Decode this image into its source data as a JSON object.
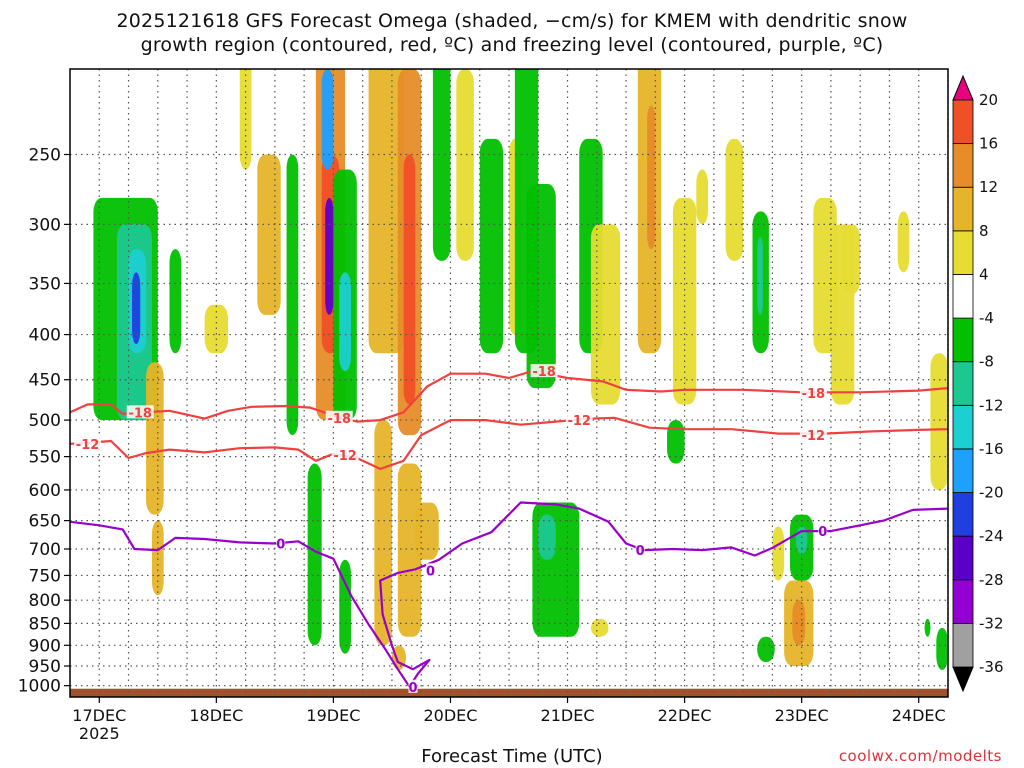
{
  "title_line1": "2025121618 GFS Forecast Omega (shaded, −cm/s) for KMEM with dendritic snow",
  "title_line2": "growth region (contoured, red, ºC) and freezing level (contoured, purple, ºC)",
  "xlabel": "Forecast Time (UTC)",
  "credit": "coolwx.com/modelts",
  "colors": {
    "snow_growth_contour": "#f04040",
    "freezing_level_contour": "#9900cc",
    "terrain": "#a0522d",
    "grid": "#555555"
  },
  "chart_data": {
    "type": "heatmap",
    "x_ticks": [
      "17DEC",
      "18DEC",
      "19DEC",
      "20DEC",
      "21DEC",
      "22DEC",
      "23DEC",
      "24DEC"
    ],
    "x_sub_label": "2025",
    "y_ticks": [
      250,
      300,
      350,
      400,
      450,
      500,
      550,
      600,
      650,
      700,
      750,
      800,
      850,
      900,
      950,
      1000
    ],
    "y_unit": "hPa",
    "colorbar": {
      "tick_labels": [
        "-36",
        "-32",
        "-28",
        "-24",
        "-20",
        "-16",
        "-12",
        "-8",
        "-4",
        "4",
        "8",
        "12",
        "16",
        "20"
      ],
      "boundaries": [
        -36,
        -32,
        -28,
        -24,
        -20,
        -16,
        -12,
        -8,
        -4,
        4,
        8,
        12,
        16,
        20
      ],
      "colors": [
        "#000000",
        "#a0a0a0",
        "#9400d3",
        "#5a00c8",
        "#1f3fe0",
        "#1ea0ff",
        "#1ccfd0",
        "#1cc890",
        "#00c000",
        "#ffffff",
        "#e6dc32",
        "#e6b428",
        "#e68c28",
        "#f05028",
        "#e6007f"
      ]
    },
    "contours": [
      {
        "label": "-18",
        "color": "red",
        "points": [
          [
            16.75,
            490
          ],
          [
            16.9,
            480
          ],
          [
            17.1,
            480
          ],
          [
            17.2,
            492
          ],
          [
            17.4,
            490
          ],
          [
            17.6,
            488
          ],
          [
            17.9,
            498
          ],
          [
            18.1,
            488
          ],
          [
            18.3,
            483
          ],
          [
            18.6,
            482
          ],
          [
            18.8,
            484
          ],
          [
            19.0,
            494
          ],
          [
            19.2,
            502
          ],
          [
            19.4,
            500
          ],
          [
            19.6,
            490
          ],
          [
            19.8,
            458
          ],
          [
            20.0,
            443
          ],
          [
            20.3,
            443
          ],
          [
            20.5,
            448
          ],
          [
            20.7,
            440
          ],
          [
            21.0,
            448
          ],
          [
            21.3,
            452
          ],
          [
            21.5,
            462
          ],
          [
            21.8,
            464
          ],
          [
            22.0,
            462
          ],
          [
            22.5,
            462
          ],
          [
            23.0,
            465
          ],
          [
            23.5,
            465
          ],
          [
            24.0,
            463
          ],
          [
            24.25,
            460
          ]
        ],
        "label_at": [
          [
            17.35,
            490
          ],
          [
            19.05,
            497
          ],
          [
            20.8,
            440
          ],
          [
            23.1,
            466
          ]
        ]
      },
      {
        "label": "-12",
        "color": "red",
        "points": [
          [
            16.75,
            532
          ],
          [
            16.95,
            530
          ],
          [
            17.1,
            528
          ],
          [
            17.25,
            552
          ],
          [
            17.4,
            545
          ],
          [
            17.6,
            540
          ],
          [
            17.9,
            544
          ],
          [
            18.2,
            538
          ],
          [
            18.5,
            537
          ],
          [
            18.7,
            540
          ],
          [
            18.85,
            556
          ],
          [
            19.0,
            546
          ],
          [
            19.2,
            552
          ],
          [
            19.4,
            568
          ],
          [
            19.6,
            556
          ],
          [
            19.75,
            520
          ],
          [
            20.0,
            500
          ],
          [
            20.3,
            500
          ],
          [
            20.6,
            506
          ],
          [
            20.9,
            502
          ],
          [
            21.2,
            498
          ],
          [
            21.4,
            497
          ],
          [
            21.7,
            510
          ],
          [
            22.0,
            512
          ],
          [
            22.4,
            512
          ],
          [
            22.8,
            518
          ],
          [
            23.2,
            518
          ],
          [
            23.6,
            515
          ],
          [
            24.0,
            513
          ],
          [
            24.25,
            512
          ]
        ],
        "label_at": [
          [
            16.9,
            532
          ],
          [
            19.1,
            548
          ],
          [
            21.1,
            500
          ],
          [
            23.1,
            520
          ]
        ]
      },
      {
        "label": "0",
        "color": "purple",
        "points": [
          [
            16.75,
            652
          ],
          [
            17.0,
            658
          ],
          [
            17.2,
            665
          ],
          [
            17.3,
            700
          ],
          [
            17.5,
            702
          ],
          [
            17.65,
            680
          ],
          [
            17.9,
            682
          ],
          [
            18.2,
            688
          ],
          [
            18.5,
            690
          ],
          [
            18.7,
            686
          ],
          [
            18.85,
            705
          ],
          [
            19.0,
            718
          ],
          [
            19.15,
            790
          ],
          [
            19.3,
            852
          ],
          [
            19.45,
            912
          ],
          [
            19.55,
            958
          ],
          [
            19.65,
            1003
          ],
          [
            19.72,
            970
          ],
          [
            19.82,
            935
          ],
          [
            19.68,
            958
          ],
          [
            19.55,
            940
          ],
          [
            19.5,
            900
          ],
          [
            19.42,
            830
          ],
          [
            19.4,
            760
          ],
          [
            19.55,
            745
          ],
          [
            19.7,
            738
          ],
          [
            19.9,
            720
          ],
          [
            20.1,
            690
          ],
          [
            20.35,
            670
          ],
          [
            20.6,
            620
          ],
          [
            20.9,
            623
          ],
          [
            21.1,
            630
          ],
          [
            21.35,
            652
          ],
          [
            21.5,
            690
          ],
          [
            21.65,
            702
          ],
          [
            21.9,
            700
          ],
          [
            22.15,
            702
          ],
          [
            22.4,
            697
          ],
          [
            22.6,
            712
          ],
          [
            22.75,
            698
          ],
          [
            23.0,
            668
          ],
          [
            23.25,
            668
          ],
          [
            23.5,
            658
          ],
          [
            23.7,
            650
          ],
          [
            23.95,
            632
          ],
          [
            24.25,
            630
          ]
        ],
        "label_at": [
          [
            18.55,
            690
          ],
          [
            19.83,
            740
          ],
          [
            19.68,
            1003
          ],
          [
            21.62,
            702
          ],
          [
            23.18,
            668
          ]
        ]
      }
    ],
    "omega_cells": [
      [
        16.95,
        17.5,
        280,
        500,
        -8
      ],
      [
        17.15,
        17.45,
        300,
        500,
        -12
      ],
      [
        17.25,
        17.4,
        320,
        420,
        -16
      ],
      [
        17.28,
        17.35,
        340,
        410,
        -24
      ],
      [
        17.4,
        17.55,
        430,
        640,
        8
      ],
      [
        17.45,
        17.55,
        650,
        790,
        8
      ],
      [
        17.6,
        17.7,
        320,
        420,
        -8
      ],
      [
        17.9,
        18.1,
        370,
        420,
        4
      ],
      [
        18.2,
        18.3,
        190,
        260,
        4
      ],
      [
        18.35,
        18.55,
        250,
        380,
        8
      ],
      [
        18.6,
        18.7,
        250,
        520,
        -8
      ],
      [
        18.85,
        19.1,
        180,
        500,
        12
      ],
      [
        18.9,
        19.05,
        250,
        420,
        16
      ],
      [
        18.93,
        19.0,
        280,
        380,
        -28
      ],
      [
        18.9,
        19.0,
        200,
        260,
        -20
      ],
      [
        18.78,
        18.9,
        560,
        900,
        -8
      ],
      [
        19.0,
        19.2,
        260,
        500,
        -8
      ],
      [
        19.05,
        19.15,
        340,
        440,
        -16
      ],
      [
        19.05,
        19.15,
        720,
        920,
        -8
      ],
      [
        19.3,
        19.6,
        160,
        420,
        8
      ],
      [
        19.55,
        19.75,
        200,
        520,
        12
      ],
      [
        19.6,
        19.7,
        250,
        480,
        16
      ],
      [
        19.35,
        19.5,
        500,
        900,
        8
      ],
      [
        19.55,
        19.75,
        560,
        880,
        8
      ],
      [
        19.7,
        19.9,
        620,
        720,
        8
      ],
      [
        19.85,
        20.0,
        150,
        330,
        -8
      ],
      [
        20.05,
        20.2,
        200,
        330,
        4
      ],
      [
        20.25,
        20.45,
        240,
        420,
        -8
      ],
      [
        20.5,
        20.6,
        240,
        400,
        4
      ],
      [
        20.55,
        20.75,
        150,
        420,
        -8
      ],
      [
        20.65,
        20.9,
        270,
        460,
        -8
      ],
      [
        20.7,
        21.1,
        620,
        880,
        -8
      ],
      [
        20.75,
        20.9,
        640,
        720,
        -12
      ],
      [
        21.1,
        21.3,
        240,
        420,
        -8
      ],
      [
        21.2,
        21.45,
        300,
        480,
        4
      ],
      [
        21.6,
        21.8,
        160,
        420,
        8
      ],
      [
        21.68,
        21.75,
        220,
        320,
        12
      ],
      [
        21.9,
        22.1,
        280,
        480,
        4
      ],
      [
        21.85,
        22.0,
        500,
        560,
        -8
      ],
      [
        22.1,
        22.2,
        260,
        300,
        4
      ],
      [
        22.35,
        22.5,
        240,
        330,
        4
      ],
      [
        22.58,
        22.72,
        290,
        420,
        -8
      ],
      [
        22.62,
        22.67,
        310,
        380,
        -12
      ],
      [
        22.75,
        22.85,
        660,
        760,
        4
      ],
      [
        22.9,
        23.1,
        640,
        760,
        -8
      ],
      [
        22.95,
        23.05,
        660,
        710,
        -12
      ],
      [
        22.85,
        23.1,
        760,
        950,
        8
      ],
      [
        22.92,
        23.03,
        800,
        900,
        12
      ],
      [
        23.1,
        23.3,
        280,
        420,
        4
      ],
      [
        23.25,
        23.45,
        300,
        480,
        4
      ],
      [
        23.35,
        23.5,
        300,
        360,
        4
      ],
      [
        23.82,
        23.92,
        290,
        340,
        4
      ],
      [
        24.1,
        24.25,
        420,
        600,
        4
      ],
      [
        24.15,
        24.25,
        860,
        960,
        -8
      ],
      [
        24.05,
        24.1,
        840,
        880,
        -8
      ],
      [
        22.62,
        22.77,
        880,
        940,
        -8
      ],
      [
        19.5,
        19.62,
        900,
        960,
        8
      ],
      [
        21.2,
        21.35,
        840,
        880,
        4
      ]
    ]
  }
}
